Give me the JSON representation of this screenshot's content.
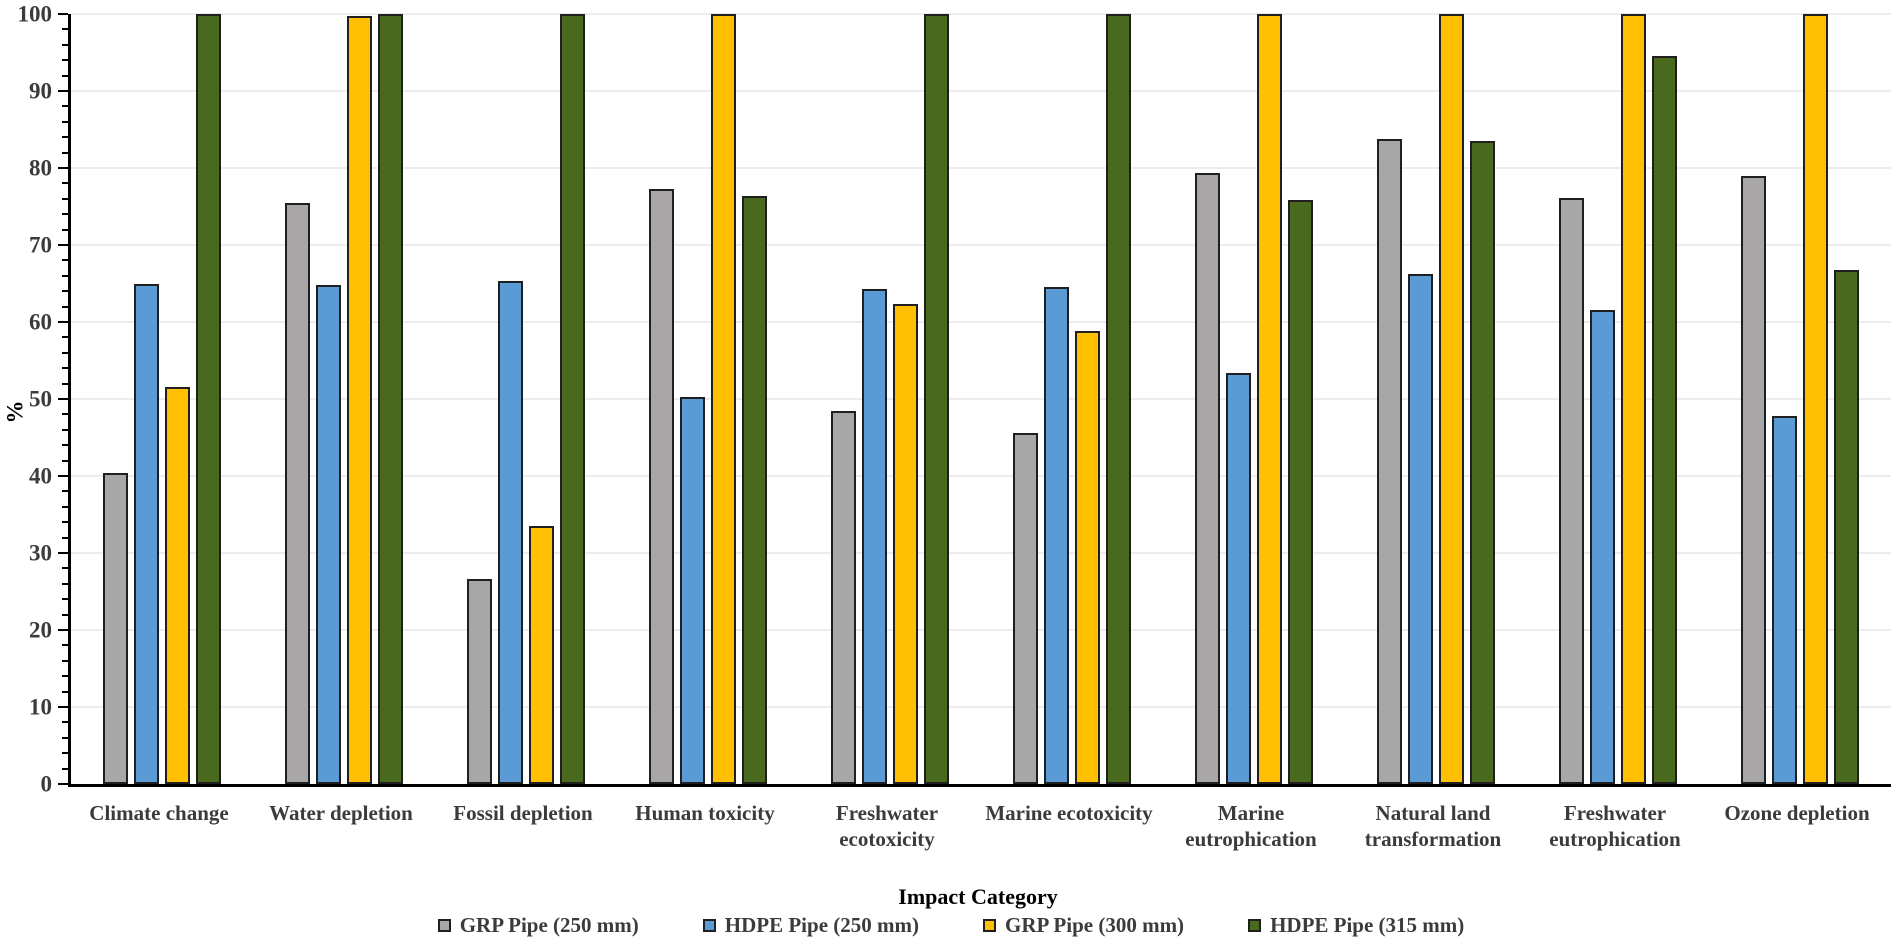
{
  "chart_data": {
    "type": "bar",
    "title": "",
    "xlabel": "Impact Category",
    "ylabel": "%",
    "ylim": [
      0,
      100
    ],
    "ytick_step": 10,
    "yminor_step": 2,
    "grid": "horizontal",
    "legend_position": "bottom",
    "categories": [
      "Climate change",
      "Water depletion",
      "Fossil depletion",
      "Human toxicity",
      "Freshwater ecotoxicity",
      "Marine ecotoxicity",
      "Marine eutrophication",
      "Natural land transformation",
      "Freshwater eutrophication",
      "Ozone depletion"
    ],
    "series": [
      {
        "name": "GRP Pipe (250 mm)",
        "color": "#A8A6A6",
        "values": [
          40.4,
          75.4,
          26.6,
          77.3,
          48.4,
          45.6,
          79.3,
          83.8,
          76.1,
          79.0
        ]
      },
      {
        "name": "HDPE Pipe (250 mm)",
        "color": "#5B9BD5",
        "values": [
          65.0,
          64.8,
          65.3,
          50.3,
          64.3,
          64.5,
          53.4,
          66.2,
          61.6,
          47.8
        ]
      },
      {
        "name": "GRP Pipe (300 mm)",
        "color": "#FFC003",
        "values": [
          51.5,
          99.7,
          33.5,
          100.0,
          62.3,
          58.8,
          100.0,
          100.0,
          100.0,
          100.0
        ]
      },
      {
        "name": "HDPE Pipe (315 mm)",
        "color": "#49691F",
        "values": [
          100.0,
          100.0,
          100.0,
          76.4,
          100.0,
          100.0,
          75.9,
          83.5,
          94.5,
          66.8
        ]
      }
    ]
  },
  "style": {
    "grid_color": "#ECECEC",
    "axis_color": "#000000",
    "bar_border_color": "#1F1F1F",
    "text_color": "#3B3B3B"
  }
}
